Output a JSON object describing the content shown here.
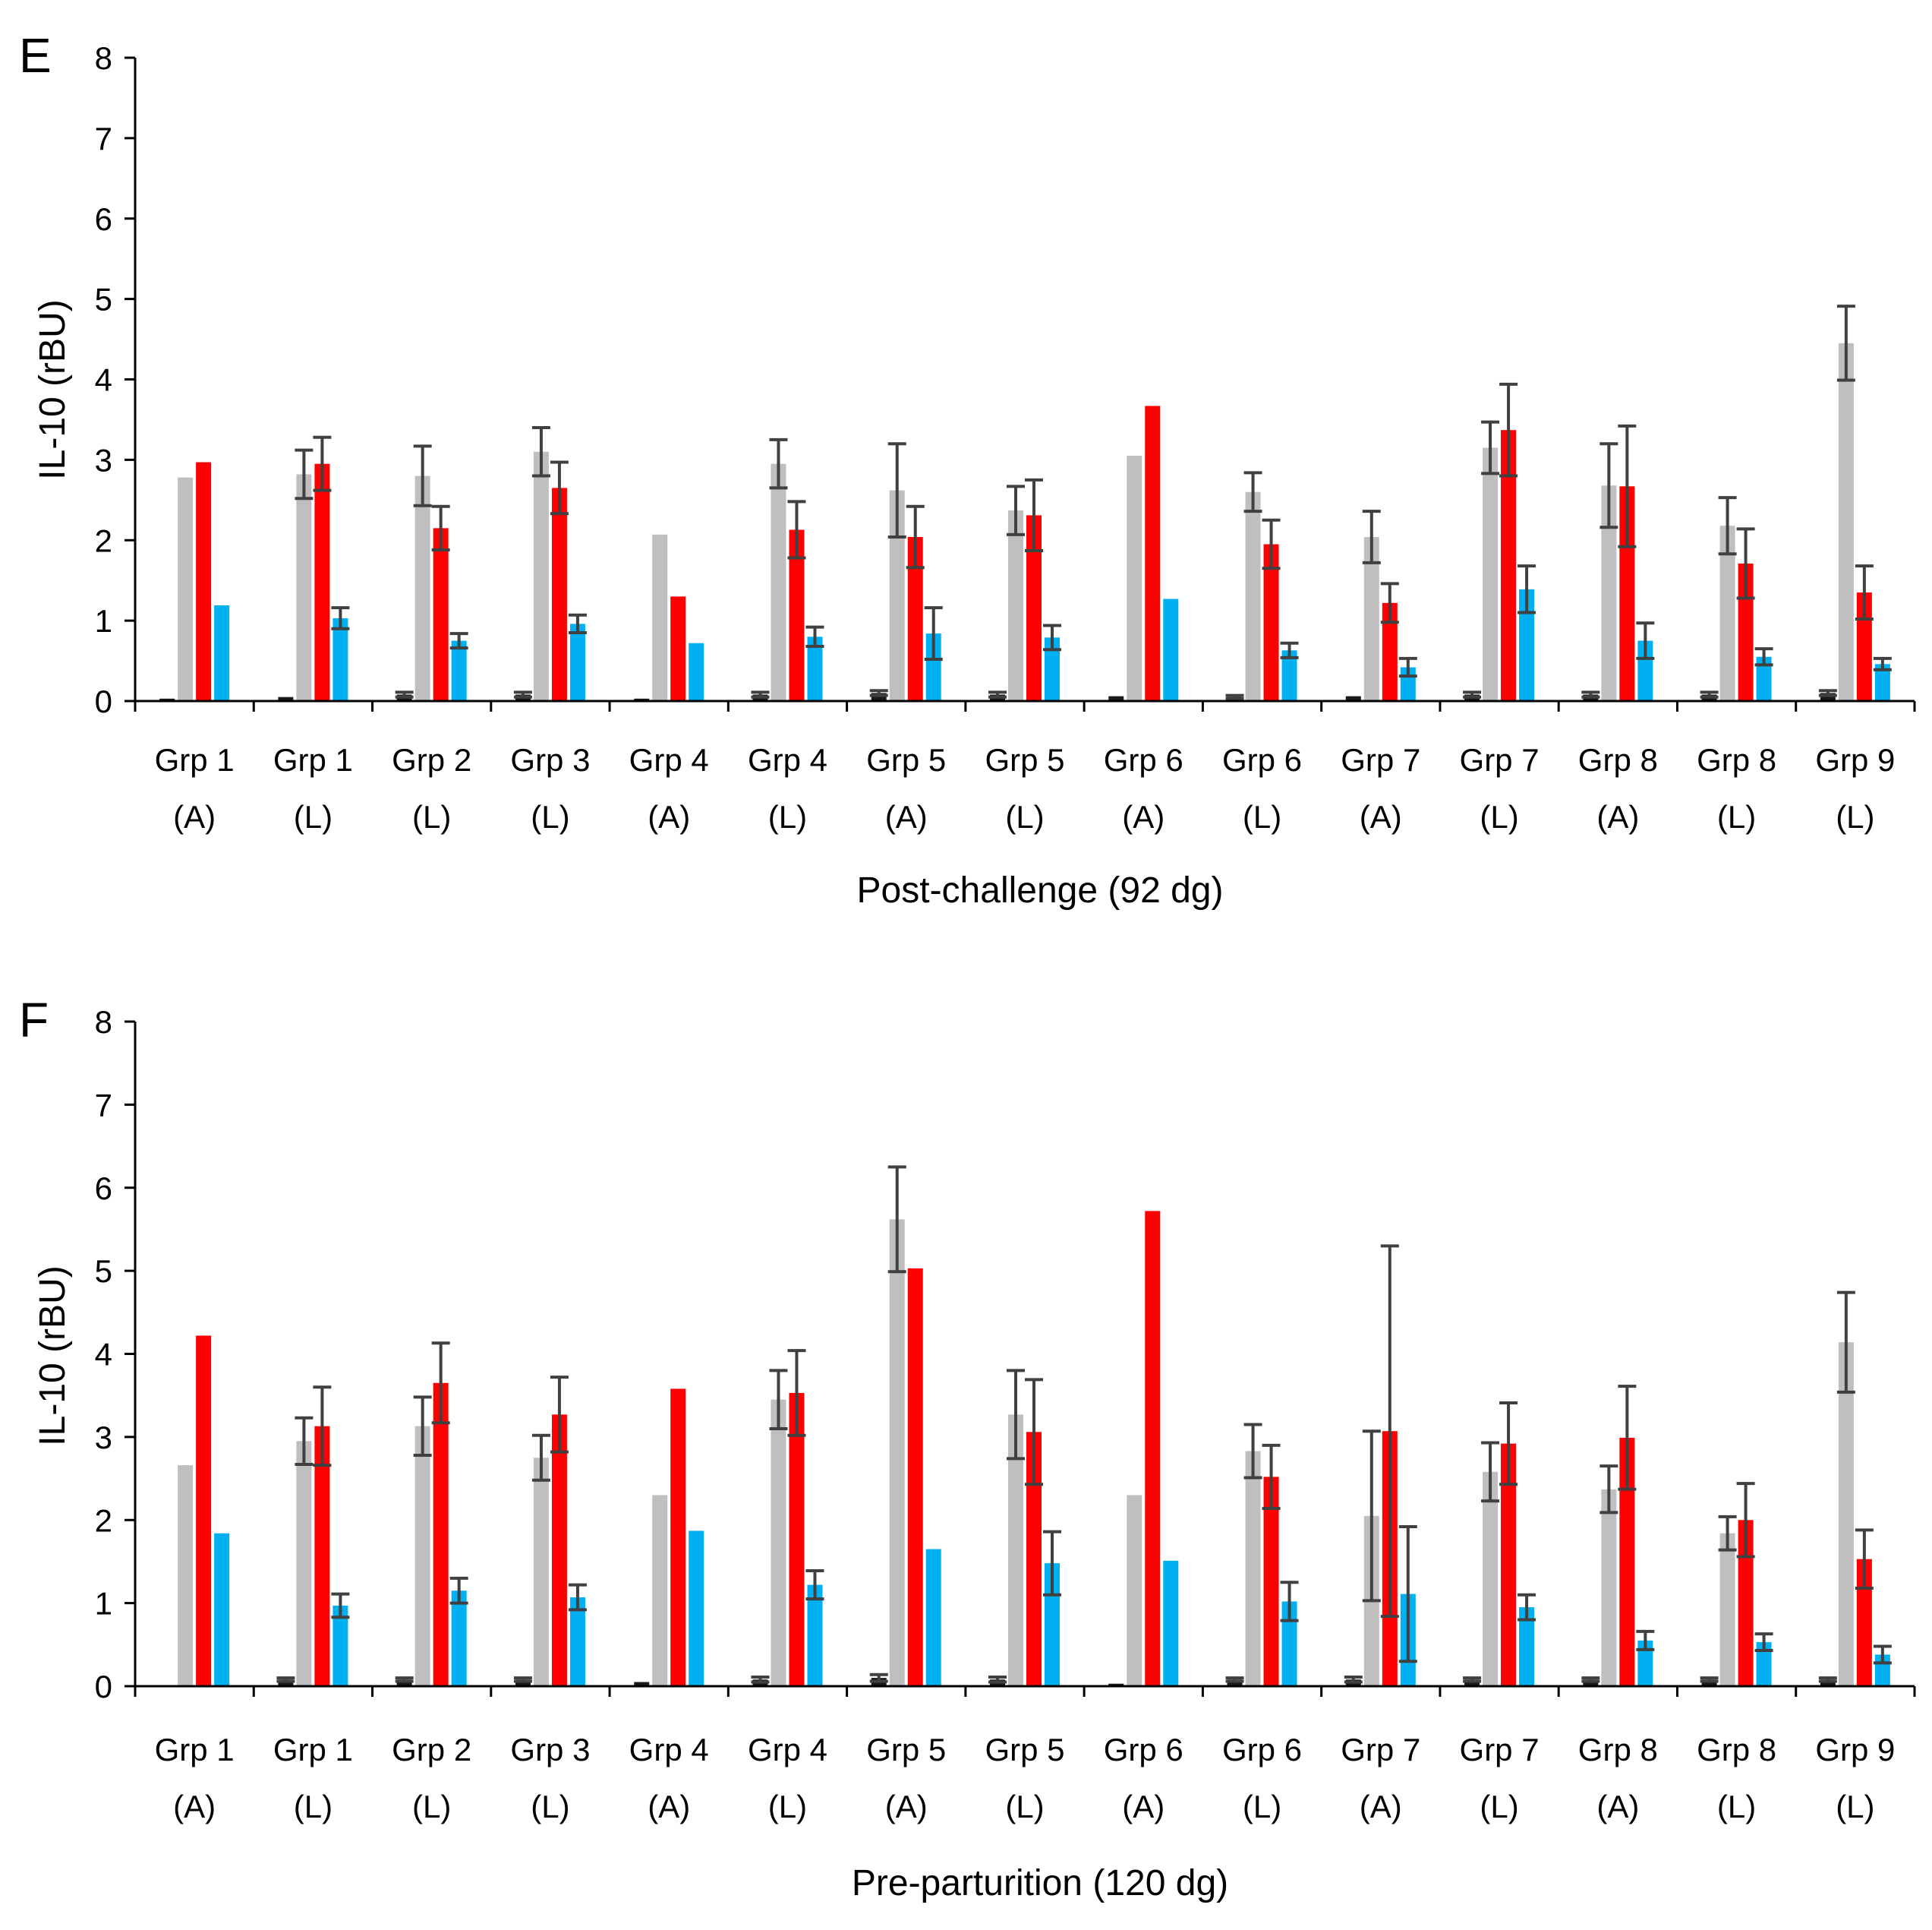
{
  "chart_data": [
    {
      "panel": "E",
      "type": "bar",
      "title": "",
      "xlabel": "Post-challenge (92 dg)",
      "ylabel": "IL-10 (rBU)",
      "ylim": [
        0,
        8
      ],
      "yticks": [
        "0",
        "1",
        "2",
        "3",
        "4",
        "5",
        "6",
        "7",
        "8"
      ],
      "grid": false,
      "categories": [
        [
          "Grp 1",
          "(A)"
        ],
        [
          "Grp 1",
          "(L)"
        ],
        [
          "Grp 2",
          "(L)"
        ],
        [
          "Grp 3",
          "(L)"
        ],
        [
          "Grp 4",
          "(A)"
        ],
        [
          "Grp 4",
          "(L)"
        ],
        [
          "Grp 5",
          "(A)"
        ],
        [
          "Grp 5",
          "(L)"
        ],
        [
          "Grp 6",
          "(A)"
        ],
        [
          "Grp 6",
          "(L)"
        ],
        [
          "Grp 7",
          "(A)"
        ],
        [
          "Grp 7",
          "(L)"
        ],
        [
          "Grp 8",
          "(A)"
        ],
        [
          "Grp 8",
          "(L)"
        ],
        [
          "Grp 9",
          "(L)"
        ]
      ],
      "series": [
        {
          "name": "dark",
          "color": "#1a1a1a",
          "values": [
            0.03,
            0.05,
            0.08,
            0.08,
            0.03,
            0.08,
            0.1,
            0.08,
            0.06,
            0.05,
            0.06,
            0.08,
            0.08,
            0.08,
            0.1
          ],
          "errors": [
            0,
            0,
            0.03,
            0.03,
            0,
            0.03,
            0.03,
            0.03,
            0,
            0.02,
            0,
            0.03,
            0.03,
            0.03,
            0.03
          ]
        },
        {
          "name": "gray",
          "color": "#bfbfbf",
          "values": [
            2.78,
            2.82,
            2.8,
            3.1,
            2.07,
            2.95,
            2.62,
            2.37,
            3.05,
            2.6,
            2.04,
            3.15,
            2.68,
            2.18,
            4.45
          ],
          "errors": [
            0,
            0.3,
            0.37,
            0.3,
            0,
            0.3,
            0.58,
            0.3,
            0,
            0.24,
            0.32,
            0.32,
            0.52,
            0.35,
            0.46
          ]
        },
        {
          "name": "red",
          "color": "#ff0000",
          "values": [
            2.97,
            2.95,
            2.15,
            2.65,
            1.3,
            2.13,
            2.04,
            2.31,
            3.67,
            1.95,
            1.22,
            3.37,
            2.67,
            1.71,
            1.35
          ],
          "errors": [
            0,
            0.33,
            0.27,
            0.32,
            0,
            0.35,
            0.38,
            0.44,
            0,
            0.3,
            0.24,
            0.57,
            0.75,
            0.43,
            0.33
          ]
        },
        {
          "name": "blue",
          "color": "#00b0f0",
          "values": [
            1.19,
            1.03,
            0.75,
            0.96,
            0.72,
            0.8,
            0.84,
            0.79,
            1.27,
            0.63,
            0.42,
            1.39,
            0.75,
            0.55,
            0.46
          ],
          "errors": [
            0,
            0.13,
            0.09,
            0.11,
            0,
            0.12,
            0.32,
            0.15,
            0,
            0.09,
            0.11,
            0.29,
            0.22,
            0.1,
            0.07
          ]
        }
      ]
    },
    {
      "panel": "F",
      "type": "bar",
      "title": "",
      "xlabel": "Pre-parturition (120 dg)",
      "ylabel": "IL-10 (rBU)",
      "ylim": [
        0,
        8
      ],
      "yticks": [
        "0",
        "1",
        "2",
        "3",
        "4",
        "5",
        "6",
        "7",
        "8"
      ],
      "grid": false,
      "categories": [
        [
          "Grp 1",
          "(A)"
        ],
        [
          "Grp 1",
          "(L)"
        ],
        [
          "Grp 2",
          "(L)"
        ],
        [
          "Grp 3",
          "(L)"
        ],
        [
          "Grp 4",
          "(A)"
        ],
        [
          "Grp 4",
          "(L)"
        ],
        [
          "Grp 5",
          "(A)"
        ],
        [
          "Grp 5",
          "(L)"
        ],
        [
          "Grp 6",
          "(A)"
        ],
        [
          "Grp 6",
          "(L)"
        ],
        [
          "Grp 7",
          "(A)"
        ],
        [
          "Grp 7",
          "(L)"
        ],
        [
          "Grp 8",
          "(A)"
        ],
        [
          "Grp 8",
          "(L)"
        ],
        [
          "Grp 9",
          "(L)"
        ]
      ],
      "series": [
        {
          "name": "dark",
          "color": "#1a1a1a",
          "values": [
            0.0,
            0.08,
            0.08,
            0.08,
            0.05,
            0.08,
            0.1,
            0.08,
            0.03,
            0.08,
            0.08,
            0.08,
            0.08,
            0.08,
            0.08
          ],
          "errors": [
            0,
            0.02,
            0.02,
            0.02,
            0,
            0.03,
            0.04,
            0.03,
            0,
            0.02,
            0.03,
            0.02,
            0.02,
            0.02,
            0.02
          ]
        },
        {
          "name": "gray",
          "color": "#bfbfbf",
          "values": [
            2.66,
            2.95,
            3.13,
            2.75,
            2.3,
            3.45,
            5.62,
            3.27,
            2.3,
            2.83,
            2.05,
            2.58,
            2.37,
            1.84,
            4.14
          ],
          "errors": [
            0,
            0.28,
            0.35,
            0.27,
            0,
            0.35,
            0.63,
            0.53,
            0,
            0.32,
            1.02,
            0.35,
            0.28,
            0.2,
            0.6
          ]
        },
        {
          "name": "red",
          "color": "#ff0000",
          "values": [
            4.22,
            3.13,
            3.65,
            3.27,
            3.58,
            3.53,
            5.03,
            3.06,
            5.72,
            2.52,
            3.07,
            2.92,
            2.99,
            2.0,
            1.53
          ],
          "errors": [
            0,
            0.47,
            0.48,
            0.45,
            0,
            0.51,
            0,
            0.63,
            0,
            0.38,
            2.23,
            0.49,
            0.62,
            0.44,
            0.35
          ]
        },
        {
          "name": "blue",
          "color": "#00b0f0",
          "values": [
            1.84,
            0.97,
            1.15,
            1.07,
            1.87,
            1.22,
            1.65,
            1.48,
            1.51,
            1.02,
            1.11,
            0.95,
            0.55,
            0.53,
            0.38
          ],
          "errors": [
            0,
            0.14,
            0.15,
            0.15,
            0,
            0.17,
            0,
            0.38,
            0,
            0.23,
            0.81,
            0.15,
            0.11,
            0.1,
            0.1
          ]
        }
      ]
    }
  ]
}
